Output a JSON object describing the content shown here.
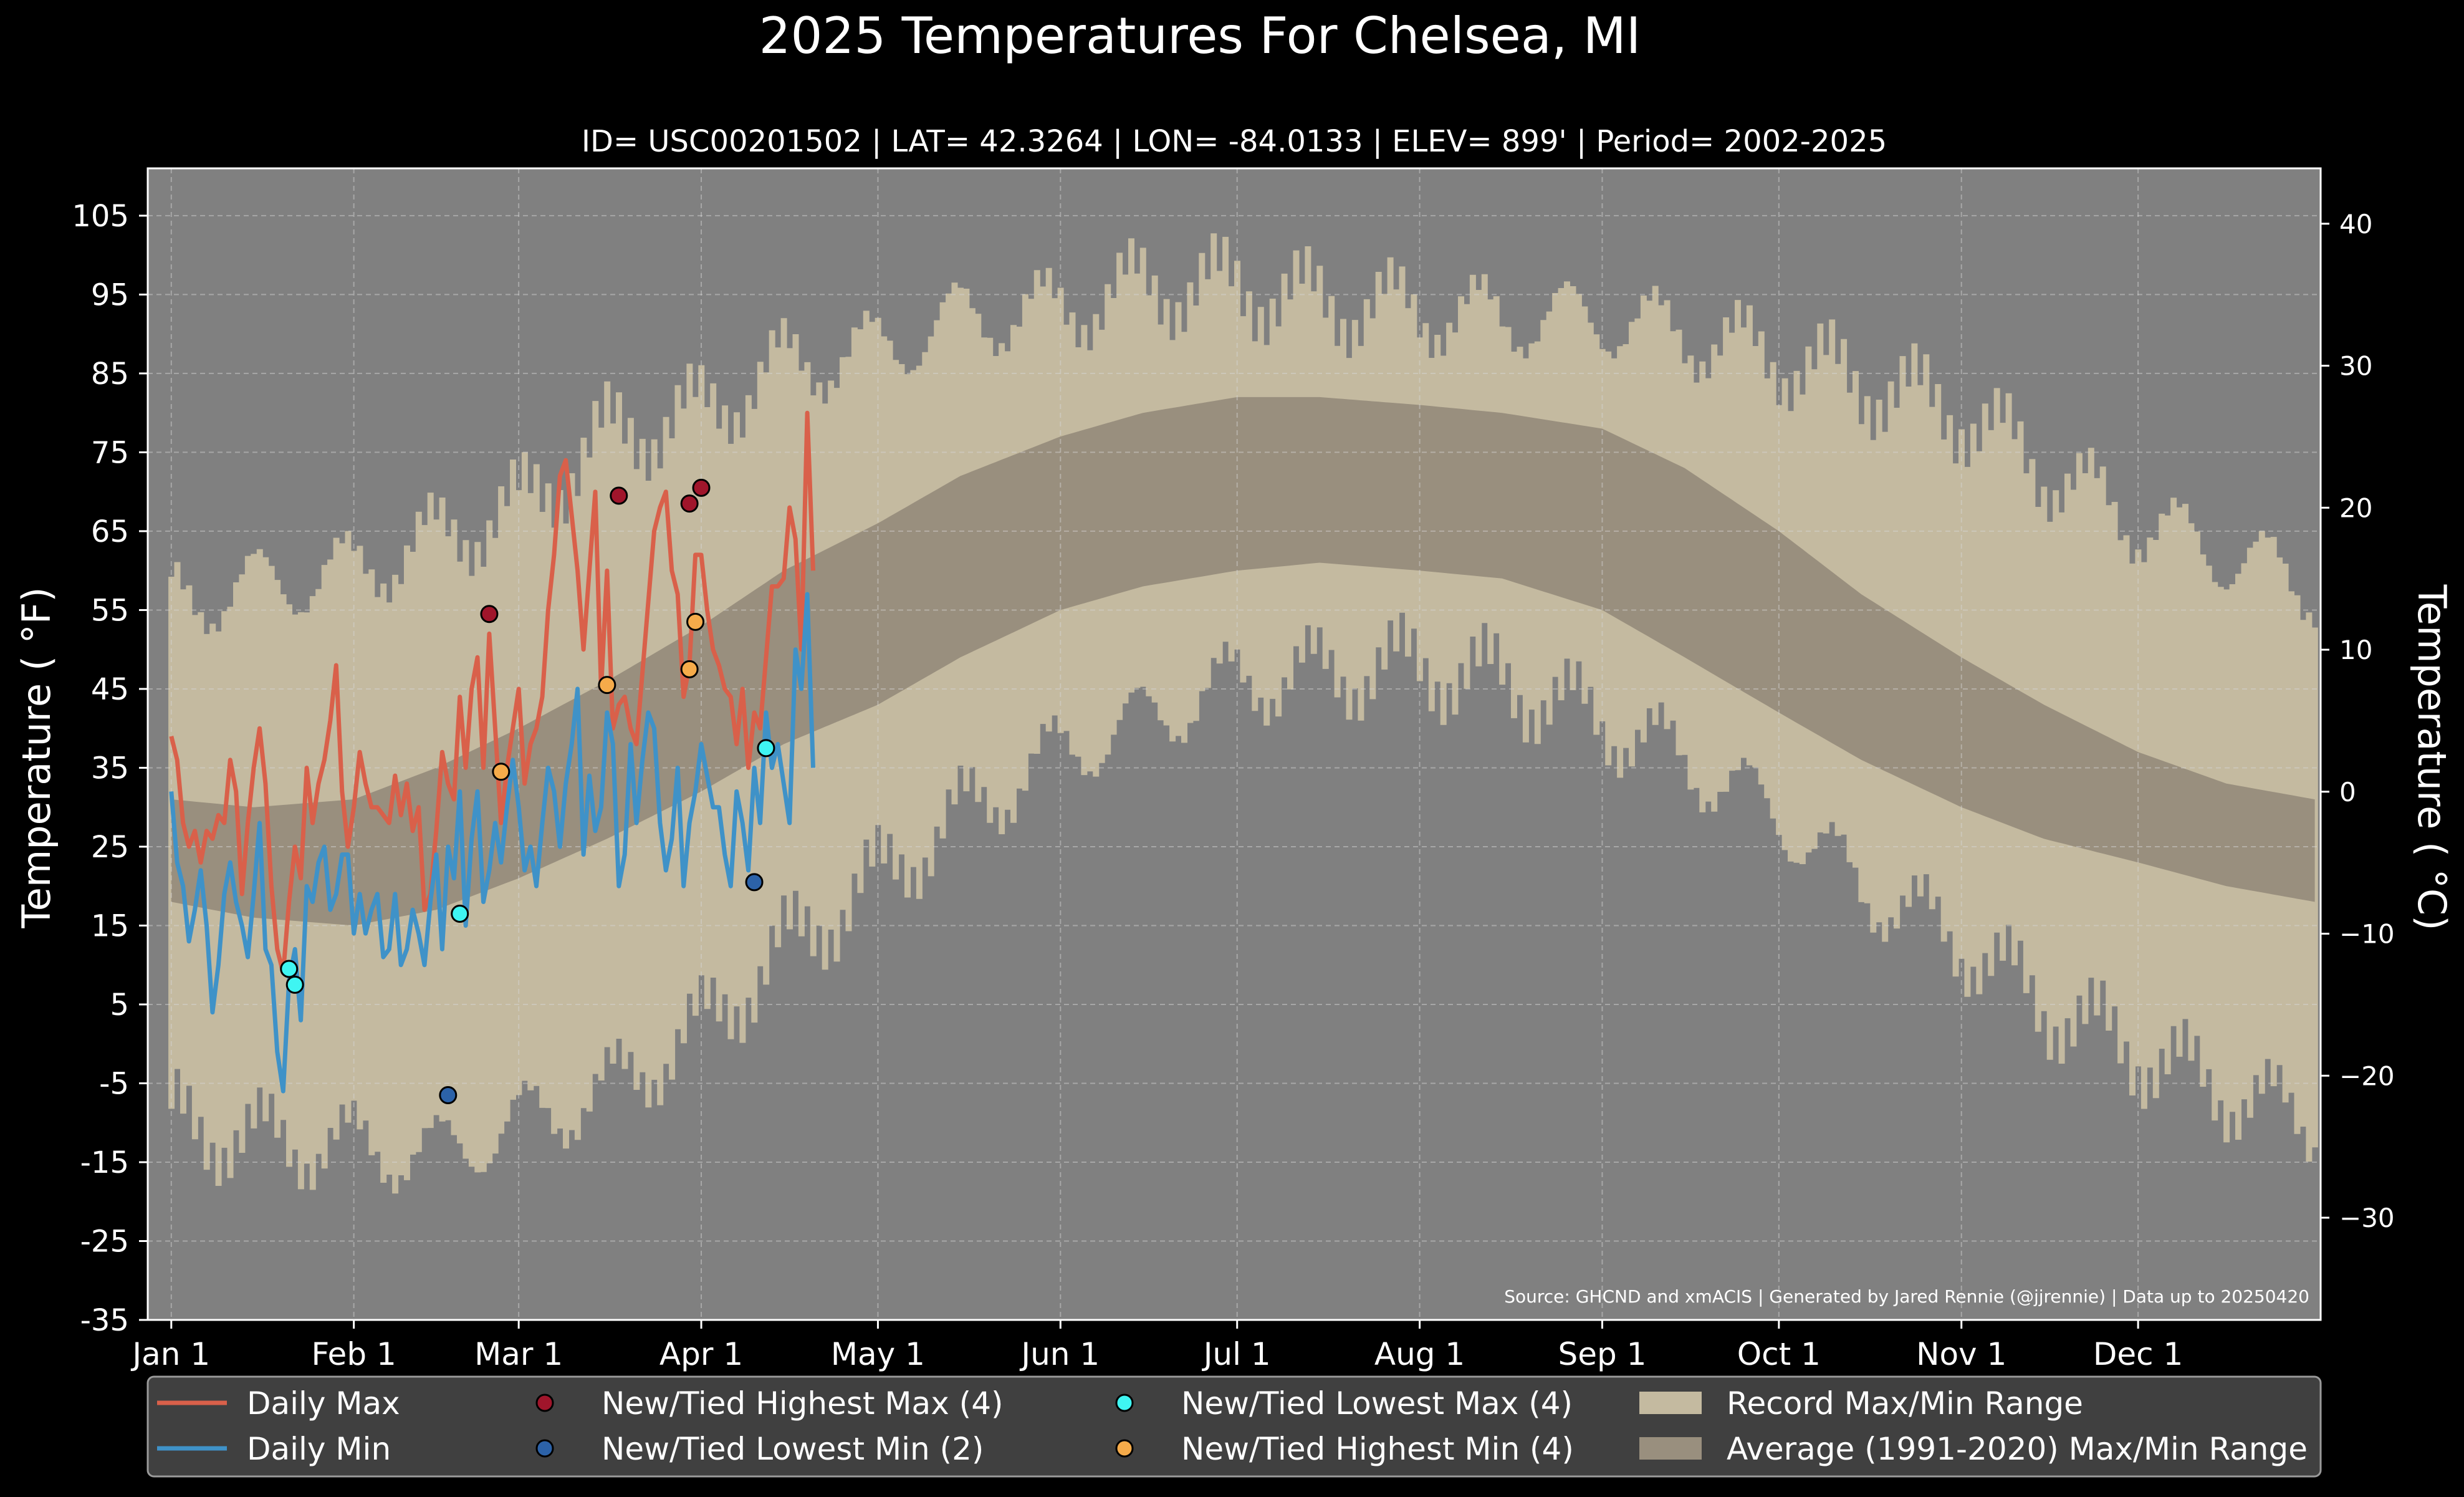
{
  "chart_data": {
    "type": "line",
    "title": "2025 Temperatures For Chelsea, MI",
    "subtitle": "ID= USC00201502 | LAT= 42.3264 | LON= -84.0133 | ELEV= 899' | Period= 2002-2025",
    "ylabel": "Temperature ( °F)",
    "ylabel_right": "Temperature ( °C)",
    "source": "Source: GHCND and xmACIS | Generated by Jared Rennie (@jjrennie) | Data up to 20250420",
    "ylim": [
      -35,
      111
    ],
    "ylim_right_c": [
      -37.2,
      43.9
    ],
    "yticks": [
      -35,
      -25,
      -15,
      -5,
      5,
      15,
      25,
      35,
      45,
      55,
      65,
      75,
      85,
      95,
      105
    ],
    "yticks_right": [
      -30,
      -20,
      -10,
      0,
      10,
      20,
      30,
      40
    ],
    "xticks": [
      {
        "day": 1,
        "label": "Jan 1"
      },
      {
        "day": 32,
        "label": "Feb 1"
      },
      {
        "day": 60,
        "label": "Mar 1"
      },
      {
        "day": 91,
        "label": "Apr 1"
      },
      {
        "day": 121,
        "label": "May 1"
      },
      {
        "day": 152,
        "label": "Jun 1"
      },
      {
        "day": 182,
        "label": "Jul 1"
      },
      {
        "day": 213,
        "label": "Aug 1"
      },
      {
        "day": 244,
        "label": "Sep 1"
      },
      {
        "day": 274,
        "label": "Oct 1"
      },
      {
        "day": 305,
        "label": "Nov 1"
      },
      {
        "day": 335,
        "label": "Dec 1"
      }
    ],
    "xlim_days": [
      -3,
      366
    ],
    "grid": true,
    "legend_position": "bottom",
    "legend": [
      {
        "label": "Daily Max",
        "kind": "line",
        "color": "#d9604a"
      },
      {
        "label": "Daily Min",
        "kind": "line",
        "color": "#3f92c8"
      },
      {
        "label": "New/Tied Highest Max (4)",
        "kind": "dot",
        "color": "#a0152b"
      },
      {
        "label": "New/Tied Lowest Min (2)",
        "kind": "dot",
        "color": "#2c62a8"
      },
      {
        "label": "New/Tied Lowest Max (4)",
        "kind": "dot",
        "color": "#3ff5f2"
      },
      {
        "label": "New/Tied Highest Min (4)",
        "kind": "dot",
        "color": "#f5ab4a"
      },
      {
        "label": "Record Max/Min Range",
        "kind": "patch",
        "color": "#c4baa0"
      },
      {
        "label": "Average (1991-2020) Max/Min Range",
        "kind": "patch",
        "color": "#998f7e"
      }
    ],
    "colors": {
      "background": "#000000",
      "plot_background": "#808080",
      "record_range": "#c4baa0",
      "normal_range": "#998f7e",
      "daily_max": "#d9604a",
      "daily_min": "#3f92c8",
      "legend_bg": "#404040"
    },
    "record_range": {
      "days": [
        1,
        15,
        32,
        46,
        60,
        75,
        91,
        105,
        121,
        135,
        152,
        166,
        182,
        196,
        213,
        227,
        244,
        258,
        274,
        288,
        305,
        319,
        335,
        350,
        365
      ],
      "max": [
        56,
        58,
        60,
        64,
        68,
        77,
        80,
        86,
        88,
        92,
        93,
        96,
        96,
        94,
        93,
        92,
        92,
        90,
        87,
        84,
        80,
        73,
        66,
        62,
        58
      ],
      "min": [
        -10,
        -12,
        -13,
        -14,
        -10,
        -6,
        2,
        12,
        21,
        29,
        37,
        41,
        46,
        47,
        48,
        46,
        41,
        36,
        29,
        20,
        13,
        5,
        -1,
        -6,
        -10
      ]
    },
    "normal_range": {
      "days": [
        1,
        15,
        32,
        46,
        60,
        75,
        91,
        105,
        121,
        135,
        152,
        166,
        182,
        196,
        213,
        227,
        244,
        258,
        274,
        288,
        305,
        319,
        335,
        350,
        365
      ],
      "max": [
        31,
        30,
        31,
        35,
        40,
        46,
        53,
        60,
        66,
        72,
        77,
        80,
        82,
        82,
        81,
        80,
        78,
        73,
        65,
        57,
        49,
        43,
        37,
        33,
        31
      ],
      "min": [
        18,
        16,
        15,
        17,
        21,
        26,
        32,
        38,
        43,
        49,
        55,
        58,
        60,
        61,
        60,
        59,
        55,
        49,
        42,
        36,
        30,
        26,
        23,
        20,
        18
      ]
    },
    "series": [
      {
        "name": "Daily Max",
        "days": [
          1,
          2,
          3,
          4,
          5,
          6,
          7,
          8,
          9,
          10,
          11,
          12,
          13,
          14,
          15,
          16,
          17,
          18,
          19,
          20,
          21,
          22,
          23,
          24,
          25,
          26,
          27,
          28,
          29,
          30,
          31,
          32,
          33,
          34,
          35,
          36,
          37,
          38,
          39,
          40,
          41,
          42,
          43,
          44,
          45,
          46,
          47,
          48,
          49,
          50,
          51,
          52,
          53,
          54,
          55,
          56,
          57,
          58,
          59,
          60,
          61,
          62,
          63,
          64,
          65,
          66,
          67,
          68,
          69,
          70,
          71,
          72,
          73,
          74,
          75,
          76,
          77,
          78,
          79,
          80,
          81,
          82,
          83,
          84,
          85,
          86,
          87,
          88,
          89,
          90,
          91,
          92,
          93,
          94,
          95,
          96,
          97,
          98,
          99,
          100,
          101,
          102,
          103,
          104,
          105,
          106,
          107,
          108,
          109,
          110
        ],
        "values": [
          39,
          36,
          28,
          25,
          27,
          23,
          27,
          26,
          29,
          28,
          36,
          32,
          19,
          28,
          35,
          40,
          33,
          20,
          12,
          9,
          18,
          25,
          21,
          35,
          28,
          33,
          36,
          41,
          48,
          32,
          25,
          30,
          37,
          33,
          30,
          30,
          29,
          28,
          34,
          29,
          33,
          27,
          30,
          17,
          19,
          27,
          37,
          33,
          31,
          44,
          35,
          45,
          49,
          35,
          52,
          40,
          28,
          35,
          40,
          45,
          33,
          38,
          40,
          44,
          55,
          62,
          72,
          74,
          67,
          60,
          50,
          60,
          70,
          45,
          60,
          40,
          43,
          44,
          40,
          38,
          47,
          56,
          65,
          68,
          70,
          60,
          57,
          44,
          48,
          62,
          62,
          55,
          50,
          48,
          45,
          44,
          38,
          45,
          35,
          42,
          40,
          49,
          58,
          58,
          59,
          68,
          64,
          50,
          80,
          60
        ]
      },
      {
        "name": "Daily Min",
        "days": [
          1,
          2,
          3,
          4,
          5,
          6,
          7,
          8,
          9,
          10,
          11,
          12,
          13,
          14,
          15,
          16,
          17,
          18,
          19,
          20,
          21,
          22,
          23,
          24,
          25,
          26,
          27,
          28,
          29,
          30,
          31,
          32,
          33,
          34,
          35,
          36,
          37,
          38,
          39,
          40,
          41,
          42,
          43,
          44,
          45,
          46,
          47,
          48,
          49,
          50,
          51,
          52,
          53,
          54,
          55,
          56,
          57,
          58,
          59,
          60,
          61,
          62,
          63,
          64,
          65,
          66,
          67,
          68,
          69,
          70,
          71,
          72,
          73,
          74,
          75,
          76,
          77,
          78,
          79,
          80,
          81,
          82,
          83,
          84,
          85,
          86,
          87,
          88,
          89,
          90,
          91,
          92,
          93,
          94,
          95,
          96,
          97,
          98,
          99,
          100,
          101,
          102,
          103,
          104,
          105,
          106,
          107,
          108,
          109,
          110
        ],
        "values": [
          32,
          23,
          20,
          13,
          17,
          22,
          15,
          4,
          10,
          19,
          23,
          18,
          15,
          11,
          19,
          28,
          12,
          10,
          -1,
          -6,
          8,
          12,
          3,
          20,
          18,
          23,
          25,
          17,
          19,
          24,
          24,
          14,
          19,
          14,
          17,
          19,
          11,
          12,
          19,
          10,
          12,
          17,
          14,
          10,
          18,
          24,
          12,
          25,
          21,
          32,
          15,
          26,
          32,
          18,
          22,
          28,
          23,
          30,
          36,
          30,
          22,
          25,
          20,
          28,
          35,
          32,
          25,
          33,
          38,
          45,
          24,
          34,
          27,
          30,
          42,
          38,
          20,
          24,
          38,
          28,
          36,
          42,
          40,
          28,
          22,
          26,
          35,
          20,
          28,
          32,
          38,
          34,
          30,
          30,
          24,
          20,
          32,
          28,
          22,
          35,
          28,
          42,
          35,
          38,
          33,
          28,
          50,
          45,
          57,
          35
        ]
      }
    ],
    "markers": [
      {
        "name": "New/Tied Highest Max (4)",
        "color": "#a0152b",
        "points": [
          [
            55,
            54.5
          ],
          [
            77,
            69.5
          ],
          [
            89,
            68.5
          ],
          [
            91,
            70.5
          ]
        ]
      },
      {
        "name": "New/Tied Lowest Min (2)",
        "color": "#2c62a8",
        "points": [
          [
            48,
            -6.5
          ],
          [
            100,
            20.5
          ]
        ]
      },
      {
        "name": "New/Tied Lowest Max (4)",
        "color": "#3ff5f2",
        "points": [
          [
            21,
            9.5
          ],
          [
            22,
            7.5
          ],
          [
            50,
            16.5
          ],
          [
            102,
            37.5
          ]
        ]
      },
      {
        "name": "New/Tied Highest Min (4)",
        "color": "#f5ab4a",
        "points": [
          [
            57,
            34.5
          ],
          [
            75,
            45.5
          ],
          [
            89,
            47.5
          ],
          [
            90,
            53.5
          ]
        ]
      }
    ]
  }
}
